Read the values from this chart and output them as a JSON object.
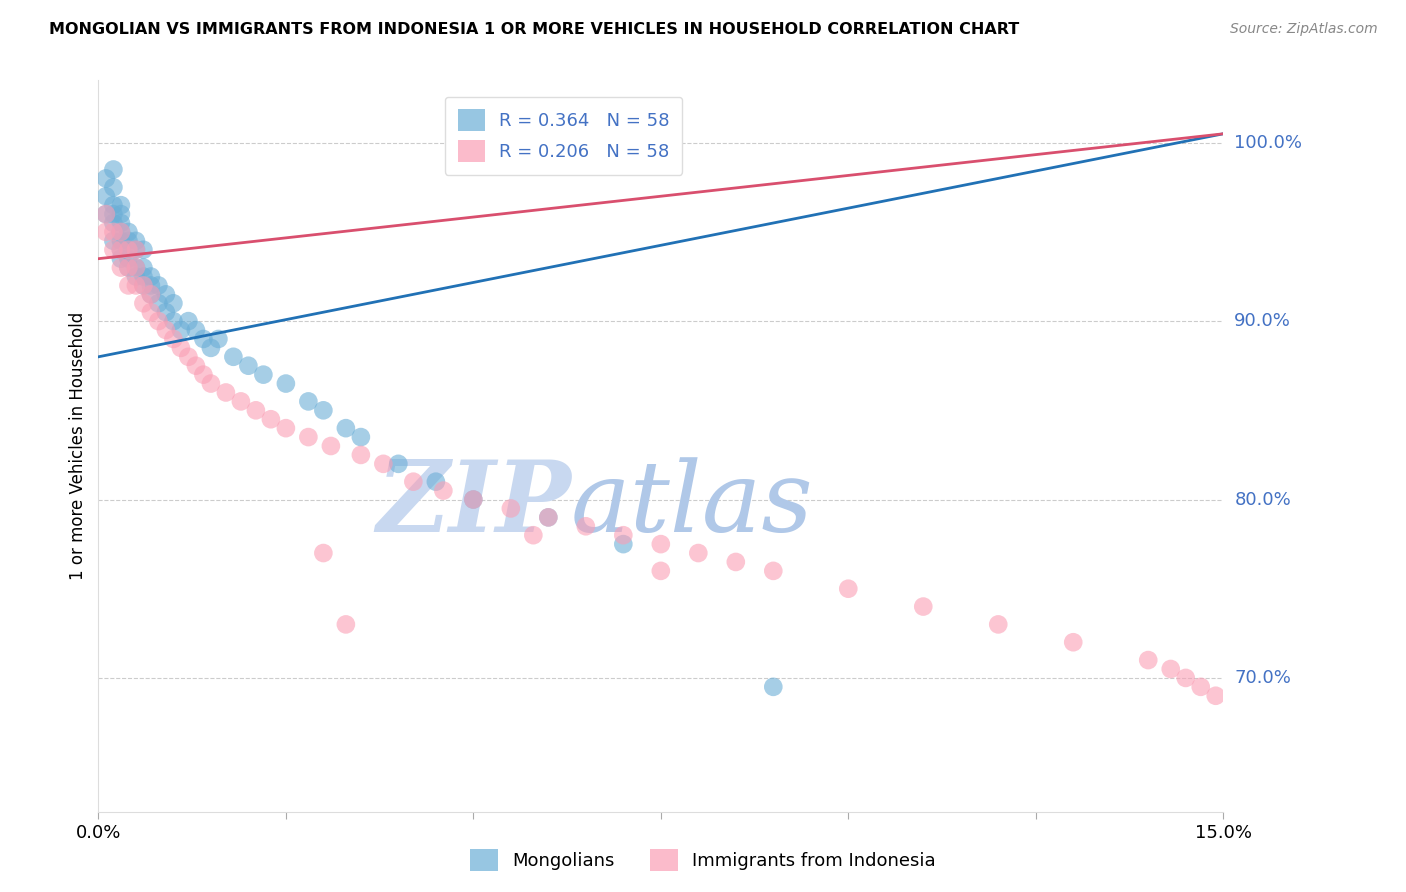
{
  "title": "MONGOLIAN VS IMMIGRANTS FROM INDONESIA 1 OR MORE VEHICLES IN HOUSEHOLD CORRELATION CHART",
  "source": "Source: ZipAtlas.com",
  "ylabel": "1 or more Vehicles in Household",
  "ytick_labels": [
    "100.0%",
    "90.0%",
    "80.0%",
    "70.0%"
  ],
  "ytick_values": [
    1.0,
    0.9,
    0.8,
    0.7
  ],
  "xmin": 0.0,
  "xmax": 0.15,
  "ymin": 0.625,
  "ymax": 1.035,
  "legend_mongolians": "Mongolians",
  "legend_indonesia": "Immigrants from Indonesia",
  "R_mongolian": 0.364,
  "N_mongolian": 58,
  "R_indonesia": 0.206,
  "N_indonesia": 58,
  "color_mongolian": "#6baed6",
  "color_indonesia": "#fa9fb5",
  "color_line_mongolian": "#2171b5",
  "color_line_indonesia": "#d94f6e",
  "color_ytick": "#4472c4",
  "watermark_zip_color": "#ccd9f0",
  "watermark_atlas_color": "#a8c4e8",
  "mongolian_x": [
    0.001,
    0.001,
    0.001,
    0.002,
    0.002,
    0.002,
    0.002,
    0.002,
    0.002,
    0.003,
    0.003,
    0.003,
    0.003,
    0.003,
    0.003,
    0.003,
    0.004,
    0.004,
    0.004,
    0.004,
    0.004,
    0.005,
    0.005,
    0.005,
    0.005,
    0.006,
    0.006,
    0.006,
    0.006,
    0.007,
    0.007,
    0.007,
    0.008,
    0.008,
    0.009,
    0.009,
    0.01,
    0.01,
    0.011,
    0.012,
    0.013,
    0.014,
    0.015,
    0.016,
    0.018,
    0.02,
    0.022,
    0.025,
    0.028,
    0.03,
    0.033,
    0.035,
    0.04,
    0.045,
    0.05,
    0.06,
    0.07,
    0.09
  ],
  "mongolian_y": [
    0.96,
    0.97,
    0.98,
    0.945,
    0.955,
    0.96,
    0.965,
    0.975,
    0.985,
    0.935,
    0.94,
    0.945,
    0.95,
    0.955,
    0.96,
    0.965,
    0.93,
    0.935,
    0.94,
    0.945,
    0.95,
    0.925,
    0.93,
    0.94,
    0.945,
    0.92,
    0.925,
    0.93,
    0.94,
    0.915,
    0.92,
    0.925,
    0.91,
    0.92,
    0.905,
    0.915,
    0.9,
    0.91,
    0.895,
    0.9,
    0.895,
    0.89,
    0.885,
    0.89,
    0.88,
    0.875,
    0.87,
    0.865,
    0.855,
    0.85,
    0.84,
    0.835,
    0.82,
    0.81,
    0.8,
    0.79,
    0.775,
    0.695
  ],
  "indonesia_x": [
    0.001,
    0.001,
    0.002,
    0.002,
    0.003,
    0.003,
    0.003,
    0.004,
    0.004,
    0.004,
    0.005,
    0.005,
    0.005,
    0.006,
    0.006,
    0.007,
    0.007,
    0.008,
    0.009,
    0.01,
    0.011,
    0.012,
    0.013,
    0.014,
    0.015,
    0.017,
    0.019,
    0.021,
    0.023,
    0.025,
    0.028,
    0.031,
    0.035,
    0.038,
    0.042,
    0.046,
    0.05,
    0.055,
    0.06,
    0.065,
    0.07,
    0.075,
    0.08,
    0.085,
    0.09,
    0.1,
    0.11,
    0.12,
    0.13,
    0.14,
    0.143,
    0.145,
    0.147,
    0.149,
    0.03,
    0.058,
    0.033,
    0.075
  ],
  "indonesia_y": [
    0.95,
    0.96,
    0.94,
    0.95,
    0.93,
    0.94,
    0.95,
    0.92,
    0.93,
    0.94,
    0.92,
    0.93,
    0.94,
    0.91,
    0.92,
    0.905,
    0.915,
    0.9,
    0.895,
    0.89,
    0.885,
    0.88,
    0.875,
    0.87,
    0.865,
    0.86,
    0.855,
    0.85,
    0.845,
    0.84,
    0.835,
    0.83,
    0.825,
    0.82,
    0.81,
    0.805,
    0.8,
    0.795,
    0.79,
    0.785,
    0.78,
    0.775,
    0.77,
    0.765,
    0.76,
    0.75,
    0.74,
    0.73,
    0.72,
    0.71,
    0.705,
    0.7,
    0.695,
    0.69,
    0.77,
    0.78,
    0.73,
    0.76
  ]
}
